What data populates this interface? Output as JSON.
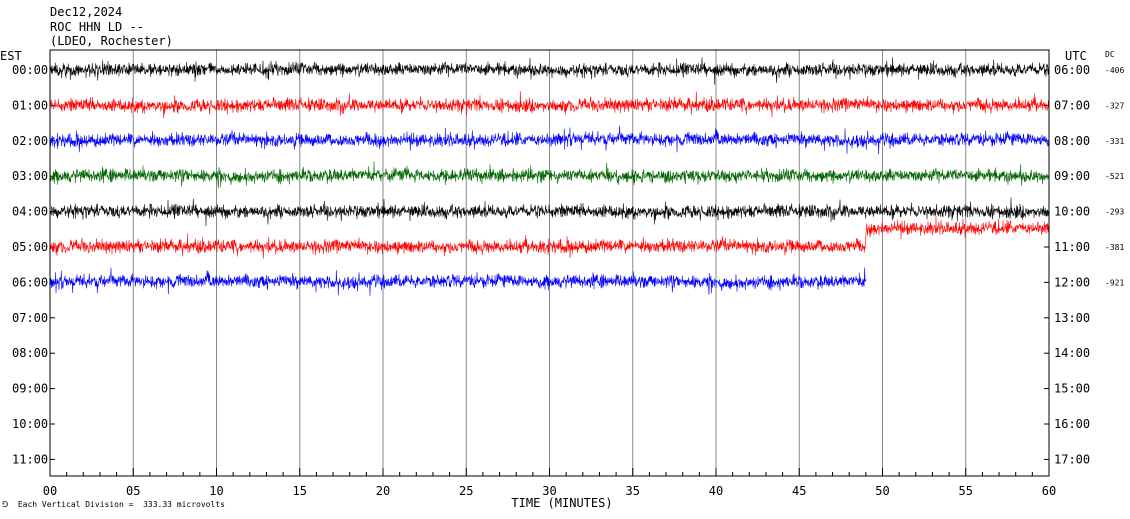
{
  "header": {
    "date": "Dec12,2024",
    "station": "ROC HHN LD --",
    "network": "(LDEO, Rochester)"
  },
  "left_axis_title": "EST",
  "right_axis_title": "UTC",
  "dc_title": "DC",
  "footer": {
    "note": "Each Vertical Division =  333.33 microvolts"
  },
  "chart_data": {
    "type": "line",
    "title": "",
    "xlabel": "TIME (MINUTES)",
    "ylabel": "",
    "xlim": [
      0,
      60
    ],
    "x_ticks": [
      "00",
      "05",
      "10",
      "15",
      "20",
      "25",
      "30",
      "35",
      "40",
      "45",
      "50",
      "55",
      "60"
    ],
    "est_hours": [
      "00:00",
      "01:00",
      "02:00",
      "03:00",
      "04:00",
      "05:00",
      "06:00",
      "07:00",
      "08:00",
      "09:00",
      "10:00",
      "11:00"
    ],
    "utc_hours": [
      "06:00",
      "07:00",
      "08:00",
      "09:00",
      "10:00",
      "11:00",
      "12:00",
      "13:00",
      "14:00",
      "15:00",
      "16:00",
      "17:00"
    ],
    "vertical_grid": true,
    "series": [
      {
        "est": "00:00",
        "utc": "06:00",
        "dc": "-406",
        "color": "#000000",
        "end_minute": 60
      },
      {
        "est": "01:00",
        "utc": "07:00",
        "dc": "-327",
        "color": "#ff0000",
        "end_minute": 60
      },
      {
        "est": "02:00",
        "utc": "08:00",
        "dc": "-331",
        "color": "#0000ff",
        "end_minute": 60
      },
      {
        "est": "03:00",
        "utc": "09:00",
        "dc": "-521",
        "color": "#006400",
        "end_minute": 60
      },
      {
        "est": "04:00",
        "utc": "10:00",
        "dc": "-293",
        "color": "#000000",
        "end_minute": 60
      },
      {
        "est": "05:00",
        "utc": "11:00",
        "dc": "-381",
        "color": "#ff0000",
        "end_minute": 60
      },
      {
        "est": "06:00",
        "utc": "12:00",
        "dc": "-921",
        "color": "#0000ff",
        "end_minute": 49
      }
    ]
  }
}
